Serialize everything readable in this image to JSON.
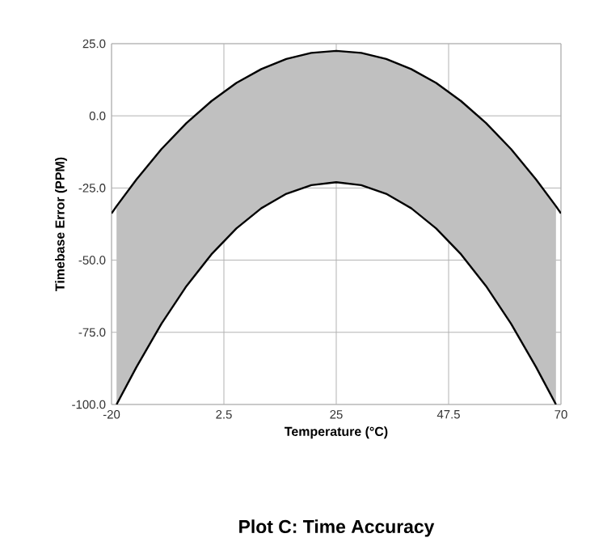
{
  "chart_data": {
    "type": "line",
    "title": "Plot C: Time Accuracy",
    "xlabel": "Temperature (°C)",
    "ylabel": "Timebase Error (PPM)",
    "x": [
      -20,
      -19,
      -15,
      -10,
      -5,
      0,
      5,
      10,
      15,
      20,
      25,
      30,
      35,
      40,
      45,
      50,
      55,
      60,
      65,
      69,
      70
    ],
    "series": [
      {
        "color": "#000000",
        "values": [
          -33.8,
          -31.3,
          -22,
          -11.5,
          -2.5,
          5.1,
          11.4,
          16.2,
          19.7,
          21.8,
          22.5,
          21.8,
          19.7,
          16.2,
          11.4,
          5.1,
          -2.5,
          -11.5,
          -22,
          -31.3,
          -33.8
        ],
        "upper": [
          null,
          -31.3,
          -22,
          -11.5,
          -2.5,
          5.1,
          11.4,
          16.2,
          19.7,
          21.8,
          22.5,
          21.8,
          19.7,
          16.2,
          11.4,
          5.1,
          -2.5,
          -11.5,
          -22,
          -31.3,
          null
        ],
        "lower": [
          null,
          -100,
          -87,
          -72,
          -59,
          -48,
          -39,
          -32,
          -27,
          -24,
          -23,
          -24,
          -27,
          -32,
          -39,
          -48,
          -59,
          -72,
          -87,
          -100,
          null
        ]
      },
      {
        "color": "#000000",
        "values": [
          null,
          -100,
          -87,
          -72,
          -59,
          -48,
          -39,
          -32,
          -27,
          -24,
          -23,
          -24,
          -27,
          -32,
          -39,
          -48,
          -59,
          -72,
          -87,
          -100,
          null
        ]
      }
    ],
    "xlim": [
      -20,
      70
    ],
    "xticks": [
      -20,
      2.5,
      25,
      47.5,
      70
    ],
    "ylim": [
      -100,
      25
    ],
    "yticks": [
      {
        "value": 25,
        "label": "25.0"
      },
      {
        "value": 0,
        "label": "0.0"
      },
      {
        "value": -25,
        "label": "-25.0"
      },
      {
        "value": -50,
        "label": "-50.0"
      },
      {
        "value": -75,
        "label": "-75.0"
      },
      {
        "value": -100,
        "label": "-100.0"
      }
    ],
    "grid": true
  }
}
